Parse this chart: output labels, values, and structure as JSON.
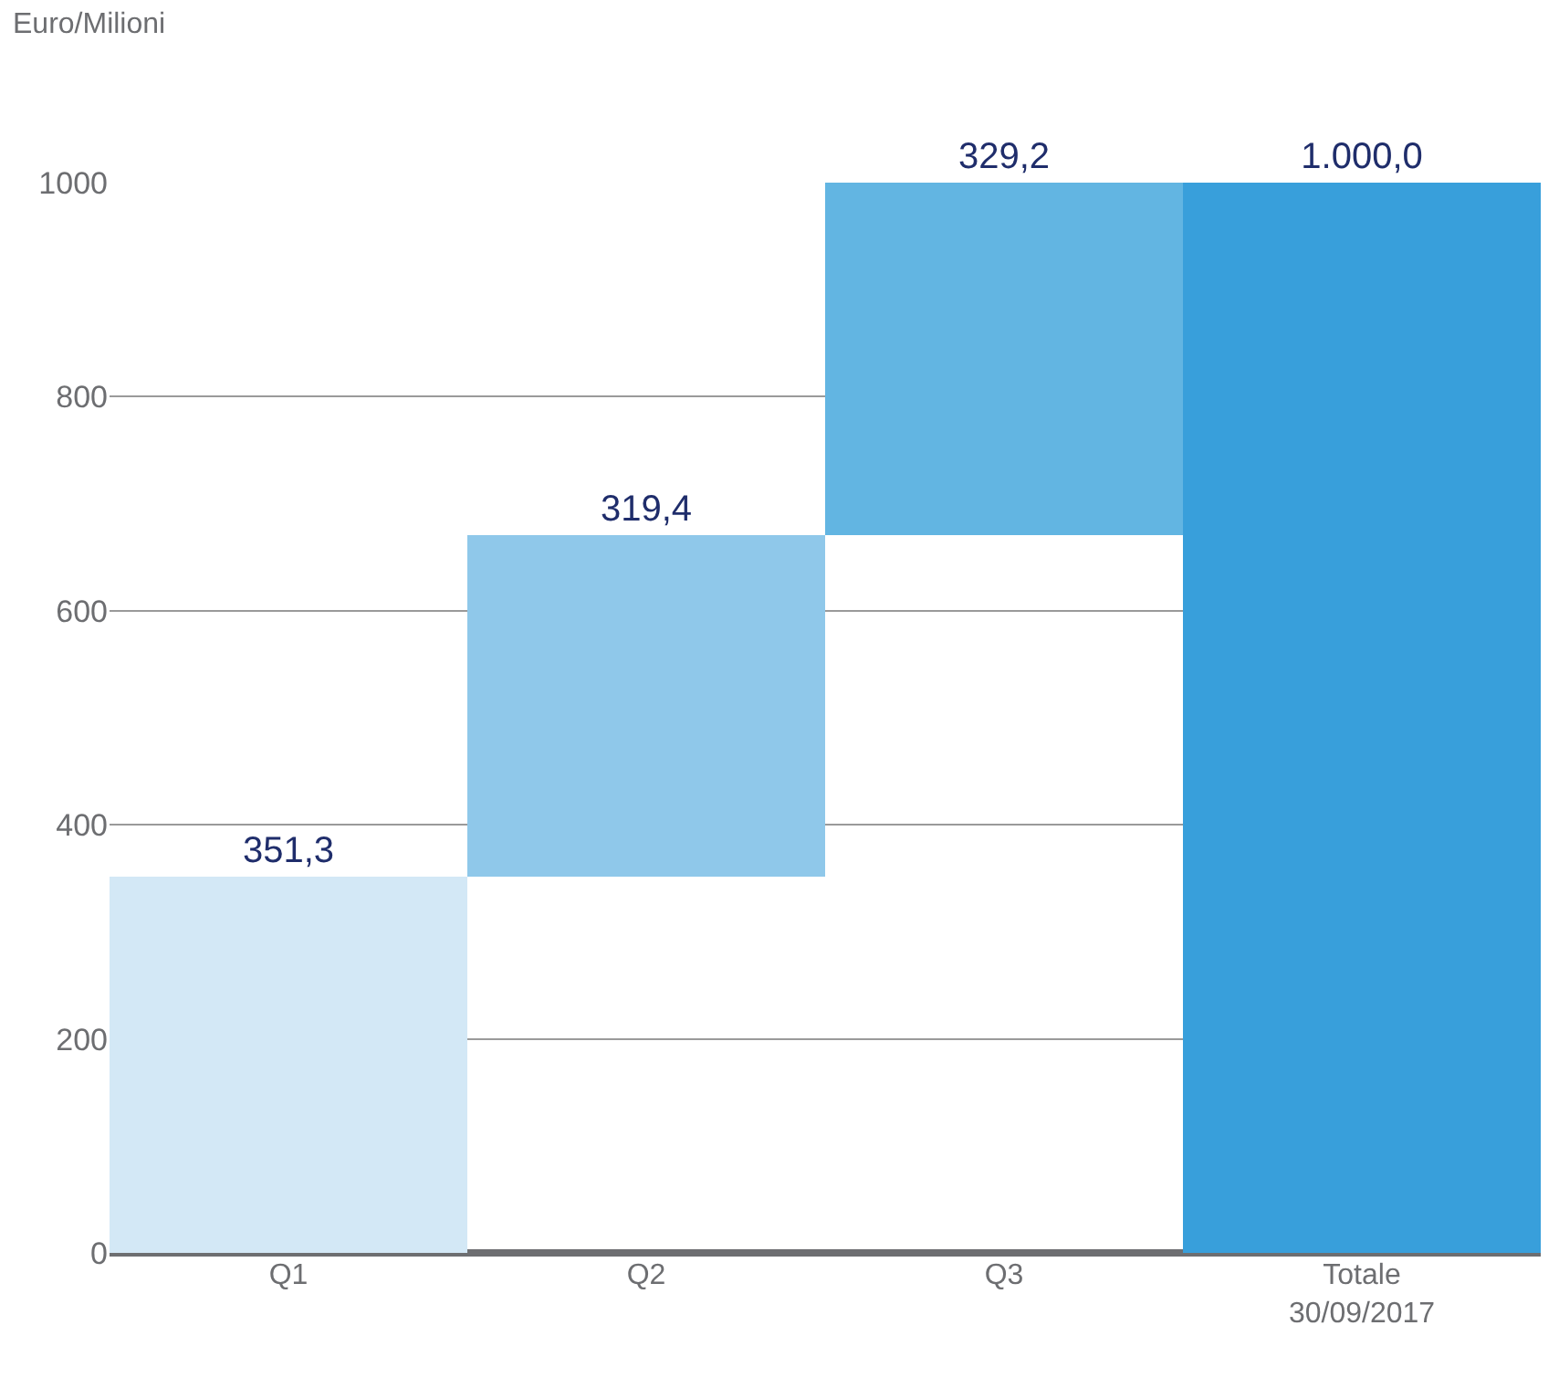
{
  "chart_data": {
    "type": "bar",
    "ylabel": "Euro/Milioni",
    "categories": [
      "Q1",
      "Q2",
      "Q3",
      "Totale\n30/09/2017"
    ],
    "values": [
      351.3,
      319.4,
      329.2,
      1000.0
    ],
    "base": [
      0,
      351.3,
      670.7,
      0
    ],
    "colors": [
      "#d3e8f6",
      "#8fc8ea",
      "#62b5e2",
      "#389fdb"
    ],
    "value_labels": [
      "351,3",
      "319,4",
      "329,2",
      "1.000,0"
    ],
    "ylim": [
      0,
      1000
    ],
    "yticks": [
      0,
      200,
      400,
      600,
      800,
      1000
    ],
    "grid": "y"
  }
}
